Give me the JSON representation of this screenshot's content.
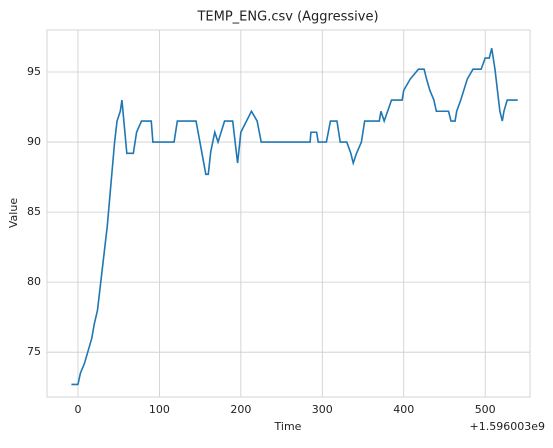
{
  "chart_data": {
    "type": "line",
    "title": "TEMP_ENG.csv (Aggressive)",
    "x_label": "Time",
    "y_label": "Value",
    "x_offset_label": "+1.596003e9",
    "x": [
      -8,
      0,
      3,
      8,
      12,
      17,
      20,
      24,
      27,
      30,
      33,
      36,
      39,
      42,
      45,
      48,
      52,
      54,
      60,
      68,
      72,
      78,
      90,
      92,
      118,
      122,
      145,
      157,
      160,
      163,
      168,
      172,
      180,
      190,
      196,
      200,
      213,
      220,
      225,
      285,
      286,
      293,
      295,
      305,
      310,
      318,
      322,
      330,
      335,
      338,
      342,
      348,
      352,
      370,
      372,
      376,
      385,
      398,
      400,
      408,
      418,
      425,
      428,
      432,
      437,
      440,
      455,
      458,
      463,
      465,
      470,
      478,
      485,
      495,
      500,
      505,
      508,
      512,
      515,
      518,
      521,
      523,
      527,
      540
    ],
    "series": [
      {
        "name": "Value",
        "color": "#1f77b4",
        "values": [
          72.7,
          72.7,
          73.5,
          74.2,
          75,
          76,
          77,
          78,
          79.5,
          81,
          82.5,
          84,
          86,
          88,
          90,
          91.5,
          92.2,
          93,
          89.2,
          89.2,
          90.7,
          91.5,
          91.5,
          90,
          90,
          91.5,
          91.5,
          87.7,
          87.7,
          89.3,
          90.7,
          90,
          91.5,
          91.5,
          88.5,
          90.7,
          92.2,
          91.5,
          90,
          90,
          90.7,
          90.7,
          90,
          90,
          91.5,
          91.5,
          90,
          90,
          89.2,
          88.5,
          89.2,
          90,
          91.5,
          91.5,
          92.2,
          91.5,
          93,
          93,
          93.7,
          94.5,
          95.2,
          95.2,
          94.5,
          93.7,
          93,
          92.2,
          92.2,
          91.5,
          91.5,
          92.2,
          93,
          94.5,
          95.2,
          95.2,
          96,
          96,
          96.7,
          95.2,
          93.7,
          92.2,
          91.5,
          92.2,
          93,
          93
        ]
      }
    ],
    "xlim": [
      -38,
      555
    ],
    "ylim": [
      71.8,
      98
    ],
    "xticks": [
      0,
      100,
      200,
      300,
      400,
      500
    ],
    "yticks": [
      75,
      80,
      85,
      90,
      95
    ],
    "grid": true
  }
}
